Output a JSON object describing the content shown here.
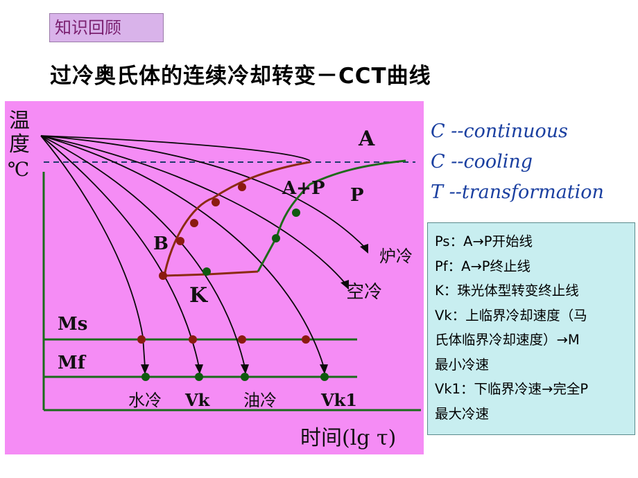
{
  "header": {
    "tag": "知识回顾",
    "title": "过冷奥氏体的连续冷却转变－CCT曲线"
  },
  "diagram": {
    "y_axis_label": [
      "温",
      "度",
      "℃"
    ],
    "x_axis_label": "时间(lg τ)",
    "region_labels": {
      "a": "A",
      "ap": "A+P",
      "p": "P",
      "b": "B",
      "k": "K",
      "ms": "Ms",
      "mf": "Mf"
    },
    "curve_labels": {
      "furnace": "炉冷",
      "air": "空冷",
      "water": "水冷",
      "vk": "Vk",
      "oil": "油冷",
      "vk1": "Vk1"
    },
    "colors": {
      "background": "#f58cf5",
      "axis": "#1a6b1a",
      "curve": "#0a0a0a",
      "ps_line": "#8b2b10",
      "pf_line": "#1f6b1a",
      "ms_line": "#1a6b1a",
      "dot_red": "#8b1a10",
      "dot_green": "#0f5a0f"
    }
  },
  "ctt": [
    {
      "letter": "C",
      "word": "--continuous"
    },
    {
      "letter": "C",
      "word": "--cooling"
    },
    {
      "letter": "T",
      "word": "--transformation"
    }
  ],
  "legend": [
    "Ps：A→P开始线",
    "Pf：A→P终止线",
    "K：珠光体型转变终止线",
    "Vk：上临界冷却速度（马",
    "氏体临界冷却速度）→M",
    "最小冷速",
    "Vk1：下临界冷速→完全P",
    "最大冷速"
  ]
}
